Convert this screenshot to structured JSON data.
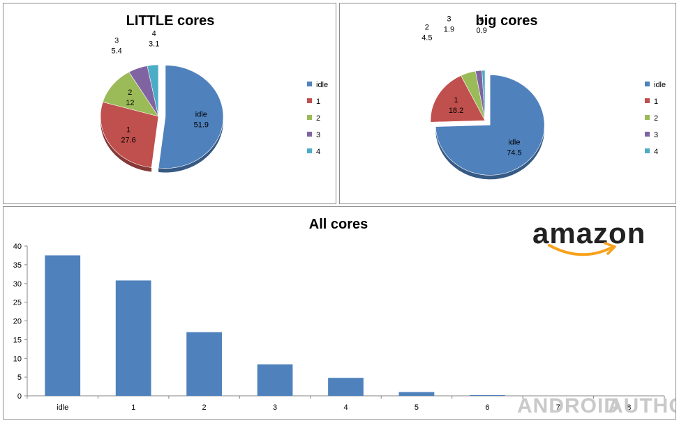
{
  "chart_data": [
    {
      "type": "pie",
      "title": "LITTLE cores",
      "exploded": "idle",
      "slices": [
        {
          "label": "idle",
          "value": 51.9,
          "color": "#4f81bd"
        },
        {
          "label": "1",
          "value": 27.6,
          "color": "#c0504d"
        },
        {
          "label": "2",
          "value": 12,
          "color": "#9bbb59"
        },
        {
          "label": "3",
          "value": 5.4,
          "color": "#8064a2"
        },
        {
          "label": "4",
          "value": 3.1,
          "color": "#4bacc6"
        }
      ],
      "legend": [
        "idle",
        "1",
        "2",
        "3",
        "4"
      ],
      "legend_position": "right"
    },
    {
      "type": "pie",
      "title": "big cores",
      "exploded": "idle",
      "slices": [
        {
          "label": "idle",
          "value": 74.5,
          "color": "#4f81bd"
        },
        {
          "label": "1",
          "value": 18.2,
          "color": "#c0504d"
        },
        {
          "label": "2",
          "value": 4.5,
          "color": "#9bbb59"
        },
        {
          "label": "3",
          "value": 1.9,
          "color": "#8064a2"
        },
        {
          "label": "4",
          "value": 0.9,
          "color": "#4bacc6"
        }
      ],
      "legend": [
        "idle",
        "1",
        "2",
        "3",
        "4"
      ],
      "legend_position": "right"
    },
    {
      "type": "bar",
      "title": "All cores",
      "categories": [
        "idle",
        "1",
        "2",
        "3",
        "4",
        "5",
        "6",
        "7",
        "8"
      ],
      "values": [
        37.5,
        30.8,
        17,
        8.4,
        4.8,
        1,
        0.2,
        0,
        0
      ],
      "color": "#4f81bd",
      "ylim": [
        0,
        40
      ],
      "yticks": [
        0,
        5,
        10,
        15,
        20,
        25,
        30,
        35,
        40
      ],
      "xlabel": "",
      "ylabel": "",
      "grid": false
    }
  ],
  "branding": {
    "logo_text": "amazon",
    "logo_color": "#222222",
    "smile_color": "#f7a21b",
    "watermark_word1": "ANDROID",
    "watermark_word2": "AUTHORITY"
  }
}
